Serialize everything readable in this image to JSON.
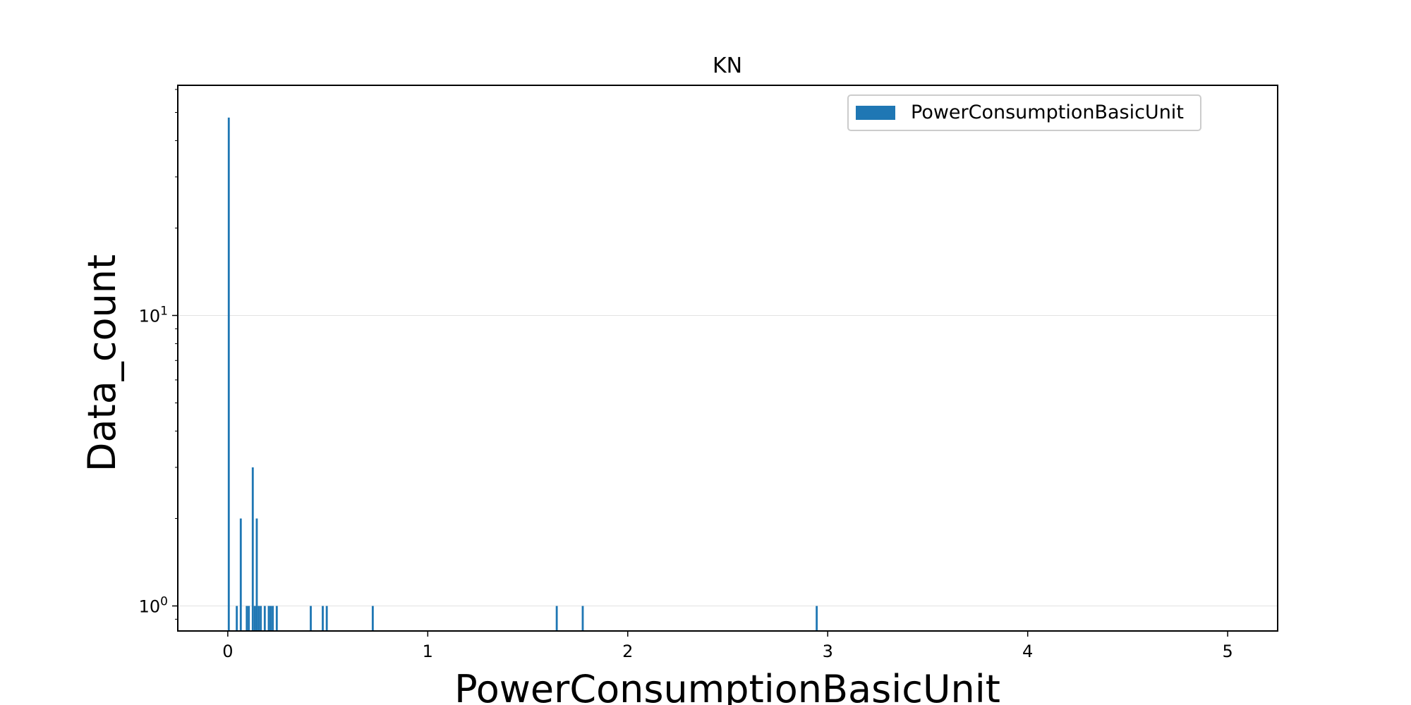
{
  "chart_data": {
    "type": "bar",
    "title": "KN",
    "xlabel": "PowerConsumptionBasicUnit",
    "ylabel": "Data_count",
    "xlim": [
      -0.25,
      5.25
    ],
    "ylim": [
      0.82,
      62
    ],
    "yscale": "log",
    "grid": "horizontal",
    "legend": {
      "placement": "top-right",
      "entries": [
        "PowerConsumptionBasicUnit"
      ]
    },
    "color": "#1f77b4",
    "x_ticks": [
      {
        "value": 0,
        "label": "0"
      },
      {
        "value": 1,
        "label": "1"
      },
      {
        "value": 2,
        "label": "2"
      },
      {
        "value": 3,
        "label": "3"
      },
      {
        "value": 4,
        "label": "4"
      },
      {
        "value": 5,
        "label": "5"
      }
    ],
    "y_ticks": [
      {
        "value": 1,
        "base": "10",
        "exp": "0"
      },
      {
        "value": 10,
        "base": "10",
        "exp": "1"
      }
    ],
    "series": [
      {
        "name": "PowerConsumptionBasicUnit",
        "bins": [
          {
            "x": 0.005,
            "count": 48
          },
          {
            "x": 0.045,
            "count": 1
          },
          {
            "x": 0.065,
            "count": 2
          },
          {
            "x": 0.095,
            "count": 1
          },
          {
            "x": 0.105,
            "count": 1
          },
          {
            "x": 0.125,
            "count": 3
          },
          {
            "x": 0.135,
            "count": 1
          },
          {
            "x": 0.145,
            "count": 2
          },
          {
            "x": 0.155,
            "count": 1
          },
          {
            "x": 0.165,
            "count": 1
          },
          {
            "x": 0.185,
            "count": 1
          },
          {
            "x": 0.205,
            "count": 1
          },
          {
            "x": 0.215,
            "count": 1
          },
          {
            "x": 0.225,
            "count": 1
          },
          {
            "x": 0.245,
            "count": 1
          },
          {
            "x": 0.415,
            "count": 1
          },
          {
            "x": 0.475,
            "count": 1
          },
          {
            "x": 0.495,
            "count": 1
          },
          {
            "x": 0.725,
            "count": 1
          },
          {
            "x": 1.645,
            "count": 1
          },
          {
            "x": 1.775,
            "count": 1
          },
          {
            "x": 2.945,
            "count": 1
          }
        ],
        "bin_width": 0.01
      }
    ]
  }
}
